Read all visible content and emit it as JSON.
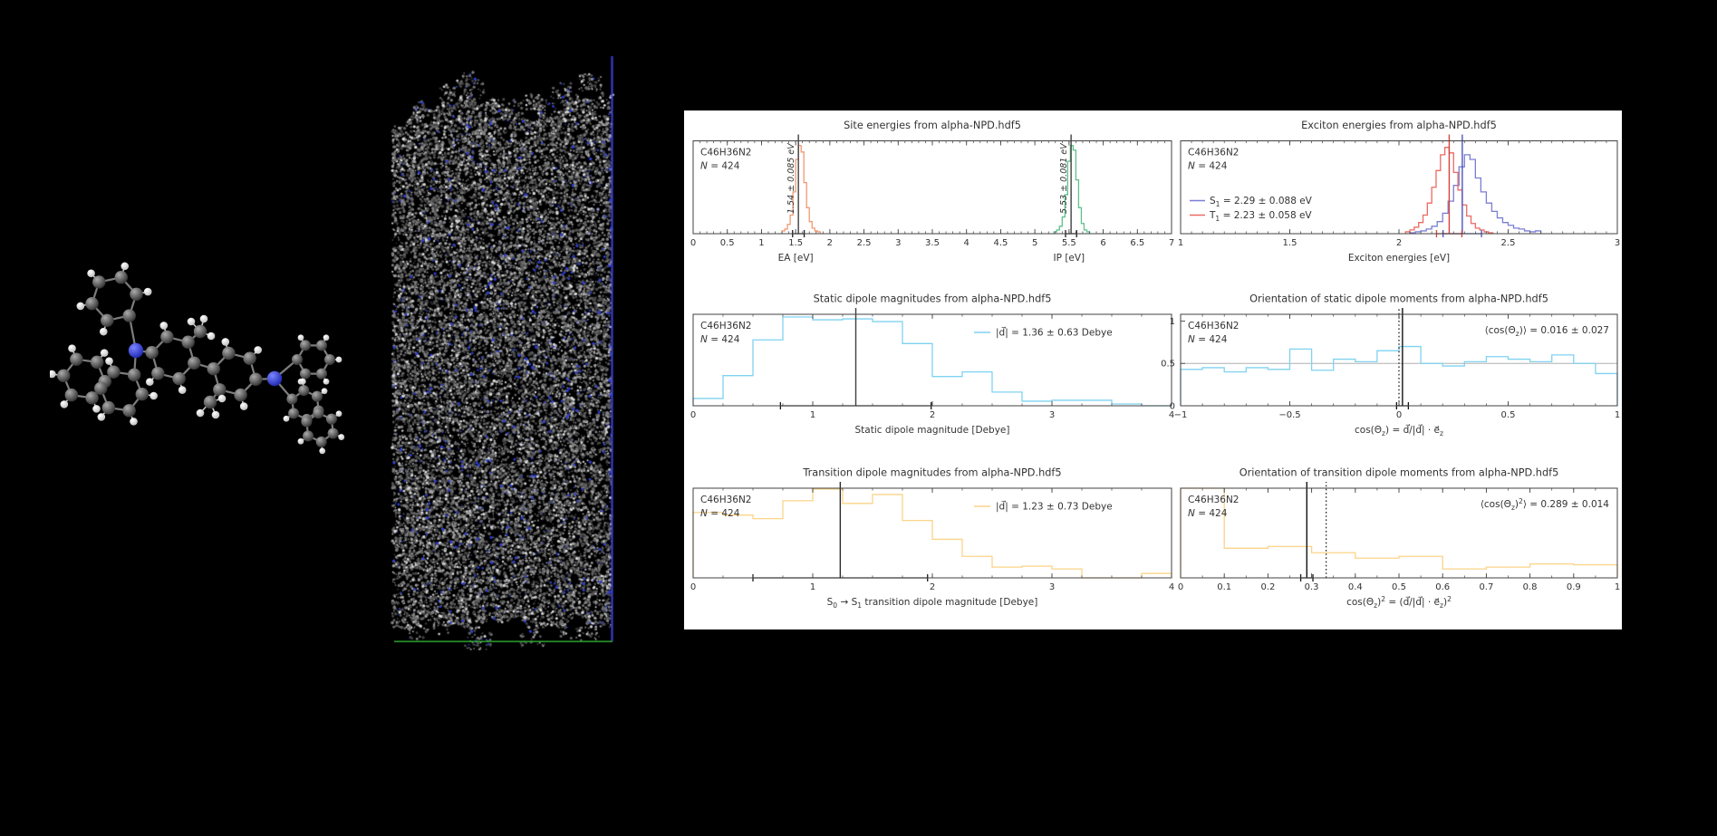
{
  "scene": {
    "background": "#000000",
    "panel_bg": "#ffffff",
    "molecule": {
      "description": "ball-and-stick alpha-NPD molecule",
      "atom_colors": {
        "carbon": "#5a5a5a",
        "hydrogen": "#e9e9e9",
        "nitrogen": "#2633c8"
      }
    },
    "morphology": {
      "description": "amorphous thin-film morphology box",
      "dot_colors": [
        "#474747",
        "#646464",
        "#828282",
        "#a5a5a5",
        "#d9d9d9"
      ],
      "nitrogen_dot_color": "#2e3ed0",
      "box_edge_right_color": "#3d43e0",
      "box_edge_bottom_color": "#2fae2f"
    }
  },
  "chart_data": [
    {
      "id": "site-energies",
      "type": "histogram",
      "title": "Site energies from alpha-NPD.hdf5",
      "info": [
        "C46H36N2",
        "N = 424"
      ],
      "xlim": [
        0,
        7
      ],
      "xtick_vals": [
        0,
        0.5,
        1,
        1.5,
        2,
        2.5,
        3,
        3.5,
        4,
        4.5,
        5,
        5.5,
        6,
        6.5,
        7
      ],
      "xtick_labels": [
        "0",
        "0.5",
        "1",
        "1.5",
        "2",
        "2.5",
        "3",
        "3.5",
        "4",
        "4.5",
        "5",
        "5.5",
        "6",
        "6.5",
        "7"
      ],
      "minor_step": 0.1,
      "ylim_max": 1.0,
      "xlabels": [
        {
          "text": "EA [eV]",
          "x": 1.5
        },
        {
          "text": "IP [eV]",
          "x": 5.5
        }
      ],
      "series": [
        {
          "name": "EA",
          "color": "#f09a73",
          "bin_start": 1.3,
          "bin_width": 0.04,
          "heights": [
            0.03,
            0.05,
            0.1,
            0.2,
            0.45,
            0.8,
            0.95,
            0.88,
            0.55,
            0.28,
            0.13,
            0.06,
            0.03,
            0.02
          ],
          "mean": 1.54,
          "err": 0.085,
          "mean_line_color": "#3f3f3f",
          "errbar_color": "#1a1a1a",
          "rotated_label": "1.54 ± 0.085 eV"
        },
        {
          "name": "IP",
          "color": "#5fc08c",
          "bin_start": 5.28,
          "bin_width": 0.04,
          "heights": [
            0.02,
            0.04,
            0.08,
            0.18,
            0.42,
            0.78,
            0.95,
            0.9,
            0.58,
            0.28,
            0.11,
            0.04,
            0.02
          ],
          "mean": 5.53,
          "err": 0.081,
          "mean_line_color": "#3f3f3f",
          "errbar_color": "#1a1a1a",
          "rotated_label": "5.53 ± 0.081 eV"
        }
      ]
    },
    {
      "id": "exciton-energies",
      "type": "histogram",
      "title": "Exciton energies from alpha-NPD.hdf5",
      "info": [
        "C46H36N2",
        "N = 424"
      ],
      "xlim": [
        1,
        3
      ],
      "xtick_vals": [
        1,
        1.5,
        2,
        2.5,
        3
      ],
      "xtick_labels": [
        "1",
        "1.5",
        "2",
        "2.5",
        "3"
      ],
      "minor_step": 0.05,
      "ylim_max": 1.0,
      "xlabels": [
        {
          "text": "Exciton energies [eV]",
          "x": 2
        }
      ],
      "legend": {
        "loc": "left",
        "entries": [
          {
            "color": "#7a7ed2",
            "label": "S_1 = 2.29 ± 0.088 eV"
          },
          {
            "color": "#ec6a63",
            "label": "T_1 = 2.23 ± 0.058 eV"
          }
        ]
      },
      "series": [
        {
          "name": "S1",
          "color": "#7a7ed2",
          "bin_start": 2.05,
          "bin_width": 0.025,
          "heights": [
            0.01,
            0.02,
            0.03,
            0.05,
            0.08,
            0.13,
            0.22,
            0.35,
            0.52,
            0.72,
            0.85,
            0.8,
            0.6,
            0.45,
            0.33,
            0.24,
            0.17,
            0.12,
            0.09,
            0.06,
            0.05,
            0.03,
            0.02,
            0.03
          ],
          "mean": 2.29,
          "err": 0.088,
          "mean_line_color": "#4d53c0",
          "errbar_color": "#4d53c0"
        },
        {
          "name": "T1",
          "color": "#ec6a63",
          "bin_start": 2.03,
          "bin_width": 0.02,
          "heights": [
            0.02,
            0.04,
            0.07,
            0.12,
            0.2,
            0.33,
            0.5,
            0.68,
            0.85,
            0.93,
            0.87,
            0.66,
            0.47,
            0.31,
            0.19,
            0.11,
            0.06,
            0.04,
            0.02,
            0.01
          ],
          "mean": 2.23,
          "err": 0.058,
          "mean_line_color": "#d8423c",
          "errbar_color": "#d8423c"
        }
      ]
    },
    {
      "id": "static-dipole-magnitudes",
      "type": "histogram",
      "title": "Static dipole magnitudes from alpha-NPD.hdf5",
      "info": [
        "C46H36N2",
        "N = 424"
      ],
      "xlim": [
        0,
        4
      ],
      "xtick_vals": [
        0,
        1,
        2,
        3,
        4
      ],
      "xtick_labels": [
        "0",
        "1",
        "2",
        "3",
        "4"
      ],
      "minor_step": 0.25,
      "ylim_max": 1.0,
      "xlabels": [
        {
          "text": "Static dipole magnitude [Debye]",
          "x": 2
        }
      ],
      "legend": {
        "loc": "right",
        "entries": [
          {
            "color": "#7fd2f0",
            "label": "|d⃗| = 1.36 ± 0.63 Debye"
          }
        ]
      },
      "series": [
        {
          "name": "static-dipole",
          "color": "#7fd2f0",
          "bin_start": 0,
          "bin_width": 0.25,
          "heights": [
            0.08,
            0.33,
            0.72,
            0.97,
            0.94,
            0.95,
            0.92,
            0.68,
            0.32,
            0.37,
            0.15,
            0.05,
            0.06,
            0.06,
            0.02,
            0.0
          ],
          "mean": 1.36,
          "err": 0.63,
          "mean_line_color": "#3f3f3f",
          "errbar_color": "#1a1a1a"
        }
      ]
    },
    {
      "id": "static-dipole-orientation",
      "type": "histogram",
      "title": "Orientation of static dipole moments from alpha-NPD.hdf5",
      "info": [
        "C46H36N2",
        "N = 424"
      ],
      "xlim": [
        -1,
        1
      ],
      "xtick_vals": [
        -1,
        -0.5,
        0,
        0.5,
        1
      ],
      "xtick_labels": [
        "−1",
        "−0.5",
        "0",
        "0.5",
        "1"
      ],
      "minor_step": 0.1,
      "ylim_max": 1.08,
      "ytick_vals": [
        0,
        0.5,
        1
      ],
      "ytick_labels": [
        "0",
        "0.5",
        "1"
      ],
      "ref_hline": 0.5,
      "annotation": "⟨cos(Θ_z)⟩ = 0.016 ± 0.027",
      "extra_vlines": [
        {
          "x": 0,
          "style": "dotted",
          "color": "#141414"
        }
      ],
      "xlabels": [
        {
          "text": "cos(Θ_z) = d⃗/|d⃗| · e⃗_z",
          "x": 0
        }
      ],
      "series": [
        {
          "name": "cos-theta-z",
          "color": "#7fd2f0",
          "bin_start": -1,
          "bin_width": 0.1,
          "heights": [
            0.43,
            0.45,
            0.4,
            0.45,
            0.43,
            0.67,
            0.42,
            0.55,
            0.52,
            0.65,
            0.7,
            0.5,
            0.47,
            0.52,
            0.58,
            0.55,
            0.52,
            0.6,
            0.5,
            0.38
          ],
          "mean": 0.016,
          "err": 0.027,
          "mean_line_color": "#141414",
          "errbar_color": "#141414"
        }
      ]
    },
    {
      "id": "transition-dipole-magnitudes",
      "type": "histogram",
      "title": "Transition dipole magnitudes from alpha-NPD.hdf5",
      "info": [
        "C46H36N2",
        "N = 424"
      ],
      "xlim": [
        0,
        4
      ],
      "xtick_vals": [
        0,
        1,
        2,
        3,
        4
      ],
      "xtick_labels": [
        "0",
        "1",
        "2",
        "3",
        "4"
      ],
      "minor_step": 0.25,
      "ylim_max": 1.0,
      "xlabels": [
        {
          "text": "S_0 → S_1 transition dipole magnitude [Debye]",
          "x": 2
        }
      ],
      "legend": {
        "loc": "right",
        "entries": [
          {
            "color": "#fbd488",
            "label": "|d⃗| = 1.23 ± 0.73 Debye"
          }
        ]
      },
      "series": [
        {
          "name": "transition-dipole",
          "color": "#fbd488",
          "bin_start": 0,
          "bin_width": 0.25,
          "heights": [
            0.73,
            0.7,
            0.66,
            0.86,
            0.99,
            0.83,
            0.93,
            0.64,
            0.43,
            0.24,
            0.12,
            0.13,
            0.1,
            0.0,
            0.0,
            0.05
          ],
          "mean": 1.23,
          "err": 0.73,
          "mean_line_color": "#2a2a2a",
          "errbar_color": "#1a1a1a"
        }
      ]
    },
    {
      "id": "transition-dipole-orientation",
      "type": "histogram",
      "title": "Orientation of transition dipole moments from alpha-NPD.hdf5",
      "info": [
        "C46H36N2",
        "N = 424"
      ],
      "xlim": [
        0,
        1
      ],
      "xtick_vals": [
        0,
        0.1,
        0.2,
        0.3,
        0.4,
        0.5,
        0.6,
        0.7,
        0.8,
        0.9,
        1
      ],
      "xtick_labels": [
        "0",
        "0.1",
        "0.2",
        "0.3",
        "0.4",
        "0.5",
        "0.6",
        "0.7",
        "0.8",
        "0.9",
        "1"
      ],
      "minor_step": 0.05,
      "ylim_max": 1.0,
      "annotation": "⟨cos(Θ_z)^2⟩ = 0.289 ± 0.014",
      "extra_vlines": [
        {
          "x": 0.3333,
          "style": "dotted",
          "color": "#141414"
        }
      ],
      "xlabels": [
        {
          "text": "cos(Θ_z)^2 = (d⃗/|d⃗| · e⃗_z)^2",
          "x": 0.5
        }
      ],
      "series": [
        {
          "name": "cos2-theta-z",
          "color": "#fbd488",
          "bin_start": 0,
          "bin_width": 0.1,
          "heights": [
            1.0,
            0.33,
            0.35,
            0.28,
            0.22,
            0.24,
            0.1,
            0.12,
            0.155,
            0.145
          ],
          "mean": 0.289,
          "err": 0.014,
          "mean_line_color": "#141414",
          "errbar_color": "#141414"
        }
      ]
    }
  ]
}
